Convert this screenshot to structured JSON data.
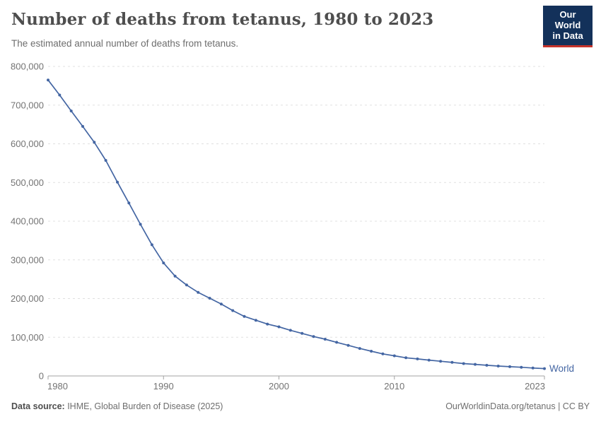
{
  "header": {
    "title": "Number of deaths from tetanus, 1980 to 2023",
    "subtitle": "The estimated annual number of deaths from tetanus.",
    "logo": {
      "line1": "Our World",
      "line2": "in Data"
    }
  },
  "footer": {
    "datasource_label": "Data source:",
    "datasource_value": " IHME, Global Burden of Disease (2025)",
    "url": "OurWorldinData.org/tetanus",
    "separator": " | ",
    "license": "CC BY"
  },
  "colors": {
    "line": "#4466A3",
    "logo_bg": "#13315A",
    "logo_accent": "#C5332B",
    "grid": "#E0E0E0",
    "axis": "#A3A3A3",
    "tick_text": "#737373",
    "title_text": "#4E4E4E",
    "subtitle_text": "#6E6E6E"
  },
  "chart_data": {
    "type": "line",
    "title": "Number of deaths from tetanus, 1980 to 2023",
    "subtitle": "The estimated annual number of deaths from tetanus.",
    "xlabel": "",
    "ylabel": "",
    "xlim": [
      1980,
      2023
    ],
    "ylim": [
      0,
      800000
    ],
    "grid": "dashed-horizontal",
    "x_ticks": [
      1980,
      1990,
      2000,
      2010,
      2023
    ],
    "x_tick_labels": [
      "1980",
      "1990",
      "2000",
      "2010",
      "2023"
    ],
    "y_ticks": [
      0,
      100000,
      200000,
      300000,
      400000,
      500000,
      600000,
      700000,
      800000
    ],
    "y_tick_labels": [
      "0",
      "100,000",
      "200,000",
      "300,000",
      "400,000",
      "500,000",
      "600,000",
      "700,000",
      "800,000"
    ],
    "legend_position": "end-of-line-label",
    "series": [
      {
        "name": "World",
        "color": "#4466A3",
        "x": [
          1980,
          1981,
          1982,
          1983,
          1984,
          1985,
          1986,
          1987,
          1988,
          1989,
          1990,
          1991,
          1992,
          1993,
          1994,
          1995,
          1996,
          1997,
          1998,
          1999,
          2000,
          2001,
          2002,
          2003,
          2004,
          2005,
          2006,
          2007,
          2008,
          2009,
          2010,
          2011,
          2012,
          2013,
          2014,
          2015,
          2016,
          2017,
          2018,
          2019,
          2020,
          2021,
          2022,
          2023
        ],
        "values": [
          765000,
          726000,
          685000,
          645000,
          604000,
          557000,
          501000,
          447000,
          392000,
          339000,
          292000,
          258000,
          235000,
          216000,
          201000,
          186000,
          169000,
          154000,
          144000,
          134000,
          127000,
          118000,
          110000,
          102000,
          95000,
          87000,
          79000,
          71000,
          64000,
          57000,
          52000,
          47000,
          44000,
          41000,
          38000,
          35000,
          32000,
          30000,
          27500,
          25500,
          24000,
          22500,
          20500,
          19000
        ]
      }
    ]
  }
}
